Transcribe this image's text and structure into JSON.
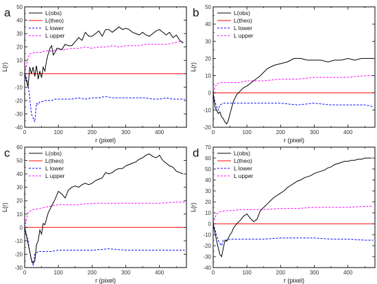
{
  "chart_data": [
    {
      "panel": "a",
      "type": "line",
      "xlabel": "r (pixel)",
      "ylabel": "L(r)",
      "xlim": [
        0,
        480
      ],
      "ylim": [
        -40,
        50
      ],
      "xticks": [
        0,
        100,
        200,
        300,
        400
      ],
      "yticks": [
        -40,
        -30,
        -20,
        -10,
        0,
        10,
        20,
        30,
        40,
        50
      ],
      "legend": "top-left",
      "series": [
        {
          "name": "L(obs)",
          "color": "#000000",
          "dash": "solid",
          "x": [
            0,
            5,
            10,
            15,
            20,
            25,
            30,
            35,
            40,
            45,
            50,
            55,
            60,
            65,
            70,
            75,
            80,
            85,
            90,
            95,
            100,
            110,
            120,
            130,
            140,
            150,
            160,
            170,
            180,
            190,
            200,
            210,
            220,
            230,
            240,
            250,
            260,
            270,
            280,
            290,
            300,
            310,
            320,
            330,
            340,
            350,
            360,
            370,
            380,
            390,
            400,
            410,
            420,
            430,
            440,
            450,
            460,
            470
          ],
          "y": [
            0,
            -5,
            -10,
            5,
            0,
            5,
            -2,
            6,
            -4,
            2,
            -3,
            5,
            2,
            10,
            15,
            19,
            21,
            14,
            16,
            19,
            19,
            18,
            22,
            21,
            21,
            24,
            27,
            25,
            31,
            28,
            28,
            30,
            32,
            28,
            33,
            33,
            31,
            33,
            35,
            33,
            34,
            33,
            31,
            30,
            29,
            31,
            29,
            28,
            30,
            32,
            33,
            31,
            29,
            31,
            27,
            29,
            25,
            23
          ]
        },
        {
          "name": "L(theo)",
          "color": "#ff0000",
          "dash": "solid",
          "x": [
            0,
            475
          ],
          "y": [
            0,
            0
          ]
        },
        {
          "name": "L lower",
          "color": "#0000ff",
          "dash": "dashed",
          "x": [
            0,
            5,
            10,
            15,
            20,
            25,
            30,
            35,
            40,
            45,
            50,
            60,
            70,
            80,
            90,
            100,
            120,
            140,
            160,
            180,
            200,
            220,
            240,
            260,
            280,
            300,
            320,
            340,
            360,
            380,
            400,
            420,
            440,
            460,
            475
          ],
          "y": [
            0,
            -3,
            -8,
            -18,
            -30,
            -33,
            -36,
            -22,
            -23,
            -21,
            -21,
            -20,
            -20,
            -20,
            -19,
            -19,
            -19,
            -19,
            -18,
            -19,
            -18,
            -18,
            -17,
            -18,
            -18,
            -18,
            -18,
            -18,
            -18,
            -19,
            -19,
            -18,
            -19,
            -19,
            -19
          ]
        },
        {
          "name": "L upper",
          "color": "#ff00ff",
          "dash": "dashed",
          "x": [
            0,
            5,
            10,
            15,
            20,
            30,
            40,
            50,
            60,
            80,
            100,
            120,
            140,
            160,
            180,
            200,
            220,
            240,
            260,
            280,
            300,
            320,
            340,
            360,
            380,
            400,
            420,
            440,
            460,
            475
          ],
          "y": [
            0,
            6,
            12,
            15,
            15,
            16,
            16,
            16,
            17,
            17,
            18,
            18,
            19,
            19,
            20,
            19,
            20,
            20,
            21,
            20,
            21,
            21,
            21,
            22,
            22,
            22,
            22,
            23,
            24,
            23
          ]
        }
      ]
    },
    {
      "panel": "b",
      "type": "line",
      "xlabel": "r (pixel)",
      "ylabel": "L(r)",
      "xlim": [
        0,
        480
      ],
      "ylim": [
        -20,
        50
      ],
      "xticks": [
        0,
        100,
        200,
        300,
        400
      ],
      "yticks": [
        -20,
        -10,
        0,
        10,
        20,
        30,
        40,
        50
      ],
      "legend": "top-left",
      "series": [
        {
          "name": "L(obs)",
          "color": "#000000",
          "dash": "solid",
          "x": [
            0,
            5,
            10,
            15,
            20,
            25,
            30,
            35,
            40,
            45,
            50,
            60,
            70,
            80,
            90,
            100,
            120,
            140,
            160,
            180,
            200,
            220,
            240,
            260,
            280,
            300,
            320,
            340,
            360,
            380,
            400,
            420,
            440,
            460,
            475
          ],
          "y": [
            0,
            -8,
            -10,
            -12,
            -11,
            -14,
            -15,
            -17,
            -18,
            -16,
            -12,
            -5,
            -1,
            1,
            3,
            4,
            7,
            10,
            14,
            16,
            17,
            18,
            20,
            20,
            19,
            19,
            19,
            18,
            19,
            19,
            20,
            19,
            20,
            20,
            20
          ]
        },
        {
          "name": "L(theo)",
          "color": "#ff0000",
          "dash": "solid",
          "x": [
            0,
            475
          ],
          "y": [
            0,
            0
          ]
        },
        {
          "name": "L lower",
          "color": "#0000ff",
          "dash": "dashed",
          "x": [
            0,
            5,
            10,
            15,
            20,
            30,
            40,
            50,
            60,
            80,
            100,
            150,
            200,
            250,
            300,
            350,
            400,
            450,
            475
          ],
          "y": [
            0,
            -5,
            -8,
            -10,
            -7,
            -6,
            -6,
            -6,
            -6,
            -6,
            -6,
            -6,
            -6,
            -7,
            -6,
            -7,
            -7,
            -7,
            -8
          ]
        },
        {
          "name": "L upper",
          "color": "#ff00ff",
          "dash": "dashed",
          "x": [
            0,
            5,
            10,
            20,
            40,
            60,
            80,
            100,
            150,
            200,
            250,
            300,
            350,
            400,
            450,
            475
          ],
          "y": [
            0,
            3,
            5,
            6,
            6,
            6,
            6,
            7,
            7,
            8,
            8,
            9,
            9,
            9,
            10,
            10
          ]
        }
      ]
    },
    {
      "panel": "c",
      "type": "line",
      "xlabel": "r (pixel)",
      "ylabel": "L(r)",
      "xlim": [
        0,
        480
      ],
      "ylim": [
        -30,
        60
      ],
      "xticks": [
        0,
        100,
        200,
        300,
        400
      ],
      "yticks": [
        -30,
        -20,
        -10,
        0,
        10,
        20,
        30,
        40,
        50,
        60
      ],
      "legend": "top-left",
      "series": [
        {
          "name": "L(obs)",
          "color": "#000000",
          "dash": "solid",
          "x": [
            0,
            5,
            10,
            15,
            20,
            25,
            30,
            35,
            40,
            45,
            50,
            55,
            60,
            70,
            80,
            90,
            100,
            110,
            120,
            130,
            140,
            150,
            160,
            170,
            180,
            190,
            200,
            210,
            220,
            230,
            240,
            250,
            260,
            270,
            280,
            290,
            300,
            310,
            320,
            330,
            340,
            350,
            360,
            370,
            380,
            390,
            400,
            410,
            420,
            430,
            440,
            450,
            460,
            470
          ],
          "y": [
            0,
            -6,
            -12,
            -18,
            -24,
            -27,
            -25,
            -13,
            -10,
            -2,
            -5,
            3,
            2,
            11,
            16,
            21,
            27,
            25,
            22,
            28,
            30,
            31,
            30,
            32,
            33,
            32,
            33,
            35,
            36,
            37,
            41,
            40,
            41,
            43,
            44,
            44,
            46,
            47,
            48,
            49,
            51,
            52,
            54,
            55,
            53,
            52,
            54,
            50,
            48,
            46,
            45,
            42,
            41,
            40
          ]
        },
        {
          "name": "L(theo)",
          "color": "#ff0000",
          "dash": "solid",
          "x": [
            0,
            475
          ],
          "y": [
            0,
            0
          ]
        },
        {
          "name": "L lower",
          "color": "#0000ff",
          "dash": "dashed",
          "x": [
            0,
            5,
            10,
            15,
            20,
            25,
            30,
            35,
            40,
            50,
            60,
            80,
            100,
            150,
            200,
            250,
            300,
            350,
            400,
            450,
            475
          ],
          "y": [
            0,
            -5,
            -10,
            -18,
            -25,
            -28,
            -20,
            -19,
            -18,
            -18,
            -18,
            -18,
            -17,
            -17,
            -17,
            -16,
            -17,
            -17,
            -17,
            -17,
            -17
          ]
        },
        {
          "name": "L upper",
          "color": "#ff00ff",
          "dash": "dashed",
          "x": [
            0,
            5,
            10,
            20,
            40,
            60,
            80,
            100,
            150,
            200,
            250,
            300,
            350,
            400,
            450,
            475
          ],
          "y": [
            0,
            6,
            11,
            13,
            14,
            15,
            16,
            17,
            17,
            18,
            18,
            18,
            18,
            18,
            19,
            19
          ]
        }
      ]
    },
    {
      "panel": "d",
      "type": "line",
      "xlabel": "r (pixel)",
      "ylabel": "L(r)",
      "xlim": [
        0,
        480
      ],
      "ylim": [
        -40,
        70
      ],
      "xticks": [
        0,
        100,
        200,
        300,
        400
      ],
      "yticks": [
        -40,
        -30,
        -20,
        -10,
        0,
        10,
        20,
        30,
        40,
        50,
        60,
        70
      ],
      "legend": "top-left",
      "series": [
        {
          "name": "L(obs)",
          "color": "#000000",
          "dash": "solid",
          "x": [
            0,
            5,
            10,
            15,
            20,
            25,
            30,
            35,
            40,
            45,
            50,
            55,
            60,
            70,
            80,
            90,
            100,
            110,
            120,
            130,
            140,
            150,
            160,
            170,
            180,
            190,
            200,
            210,
            220,
            230,
            240,
            250,
            260,
            270,
            280,
            290,
            300,
            310,
            320,
            330,
            340,
            350,
            360,
            370,
            380,
            390,
            400,
            410,
            420,
            430,
            440,
            450,
            460,
            470
          ],
          "y": [
            0,
            -8,
            -15,
            -22,
            -28,
            -30,
            -22,
            -15,
            -16,
            -13,
            -10,
            -8,
            -4,
            0,
            3,
            7,
            9,
            5,
            2,
            4,
            12,
            15,
            18,
            21,
            24,
            26,
            28,
            30,
            33,
            35,
            37,
            39,
            40,
            42,
            43,
            44,
            46,
            47,
            48,
            49,
            51,
            52,
            54,
            55,
            56,
            57,
            57,
            58,
            58,
            59,
            59,
            60,
            60,
            60
          ]
        },
        {
          "name": "L(theo)",
          "color": "#ff0000",
          "dash": "solid",
          "x": [
            0,
            475
          ],
          "y": [
            0,
            0
          ]
        },
        {
          "name": "L lower",
          "color": "#0000ff",
          "dash": "dashed",
          "x": [
            0,
            5,
            10,
            15,
            20,
            25,
            30,
            40,
            50,
            60,
            80,
            100,
            150,
            200,
            250,
            300,
            350,
            400,
            450,
            475
          ],
          "y": [
            0,
            -5,
            -10,
            -15,
            -18,
            -20,
            -15,
            -15,
            -14,
            -14,
            -14,
            -14,
            -14,
            -13,
            -13,
            -13,
            -14,
            -14,
            -15,
            -15
          ]
        },
        {
          "name": "L upper",
          "color": "#ff00ff",
          "dash": "dashed",
          "x": [
            0,
            5,
            10,
            20,
            40,
            60,
            80,
            100,
            150,
            200,
            250,
            300,
            350,
            400,
            450,
            475
          ],
          "y": [
            0,
            5,
            9,
            11,
            12,
            12,
            13,
            13,
            13,
            14,
            14,
            15,
            15,
            15,
            16,
            16
          ]
        }
      ]
    }
  ]
}
